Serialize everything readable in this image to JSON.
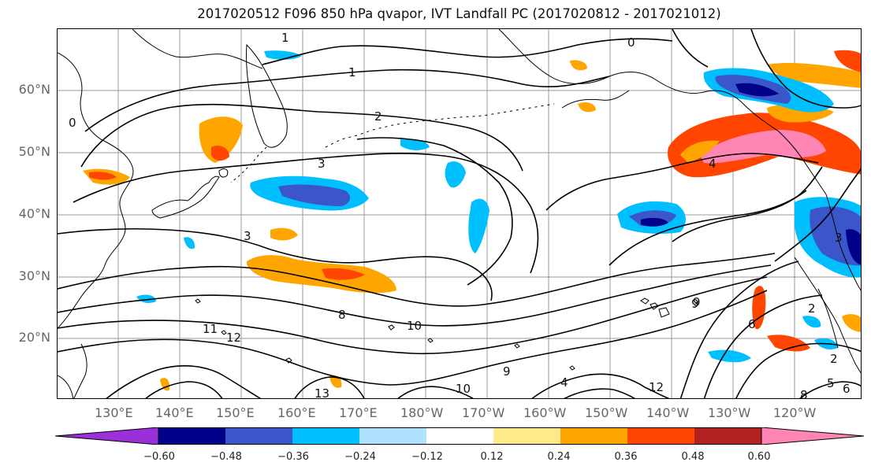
{
  "title": "2017020512 F096 850 hPa qvapor, IVT Landfall PC (2017020812 - 2017021012)",
  "lat_labels": [
    "60°N",
    "50°N",
    "40°N",
    "30°N",
    "20°N"
  ],
  "lon_labels": [
    "130°E",
    "140°E",
    "150°E",
    "160°E",
    "170°E",
    "180°W",
    "170°W",
    "160°W",
    "150°W",
    "140°W",
    "130°W",
    "120°W"
  ],
  "colorbar": {
    "ticks": [
      "−0.60",
      "−0.48",
      "−0.36",
      "−0.24",
      "−0.12",
      "0.12",
      "0.24",
      "0.36",
      "0.48",
      "0.60"
    ],
    "colors": [
      "#9b30d9",
      "#00008b",
      "#3a56c8",
      "#00bfff",
      "#b0e2ff",
      "#ffffff",
      "#ffe98a",
      "#ffa500",
      "#ff4500",
      "#b22222",
      "#ff85b5"
    ]
  },
  "contour_labels": [
    "1",
    "0",
    "1",
    "0",
    "2",
    "3",
    "3",
    "2",
    "8",
    "10",
    "11",
    "12",
    "9",
    "12",
    "10",
    "13",
    "4",
    "9",
    "6",
    "2",
    "5",
    "6",
    "8",
    "9",
    "3",
    "4"
  ],
  "colors": {
    "land_outline": "#000000",
    "grid": "#999999",
    "contour": "#000000"
  }
}
